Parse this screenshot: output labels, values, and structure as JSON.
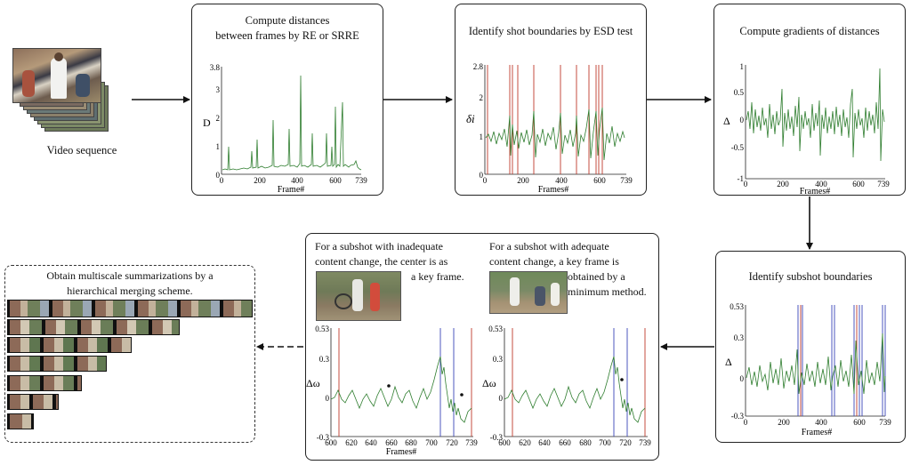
{
  "video_label": "Video sequence",
  "step1": {
    "title_line1": "Compute distances",
    "title_line2": "between frames by RE or SRRE",
    "ylabel": "D",
    "xlabel": "Frame#",
    "yticks": [
      "0",
      "1",
      "2",
      "3",
      "3.8"
    ],
    "xticks": [
      "0",
      "200",
      "400",
      "600",
      "739"
    ]
  },
  "step2": {
    "title": "Identify shot boundaries by ESD test",
    "ylabel": "δi",
    "xlabel": "Frames#",
    "yticks": [
      "0",
      "1",
      "2",
      "2.8"
    ],
    "xticks": [
      "0",
      "200",
      "400",
      "600",
      "739"
    ]
  },
  "step3": {
    "title": "Compute gradients of distances",
    "ylabel": "Δ",
    "xlabel": "Frames#",
    "yticks": [
      "-1",
      "-0.5",
      "0",
      "0.5",
      "1"
    ],
    "xticks": [
      "0",
      "200",
      "400",
      "600",
      "739"
    ]
  },
  "step4": {
    "title": "Identify subshot boundaries",
    "ylabel": "Δ",
    "xlabel": "Frames#",
    "yticks": [
      "-0.3",
      "0",
      "0.3",
      "0.53"
    ],
    "xticks": [
      "0",
      "200",
      "400",
      "600",
      "739"
    ]
  },
  "step5": {
    "left_text": [
      "For a subshot with inadequate",
      "content change, the center is as",
      "a key frame."
    ],
    "right_text": [
      "For a subshot with adequate",
      "content change, a key frame is",
      "obtained by a",
      "minimum method."
    ],
    "ylabel": "Δω",
    "xlabel": "Frames#",
    "yticks": [
      "-0.3",
      "0",
      "0.3",
      "0.53"
    ],
    "xticks": [
      "600",
      "620",
      "640",
      "660",
      "680",
      "700",
      "720",
      "739"
    ]
  },
  "step6": {
    "title_line1": "Obtain multiscale summarizations by a",
    "title_line2": "hierarchical merging scheme."
  },
  "colors": {
    "signal": "#2e7d2e",
    "shot": "#c0392b",
    "subshot": "#3a45b8",
    "frame": "#6b7d55"
  }
}
